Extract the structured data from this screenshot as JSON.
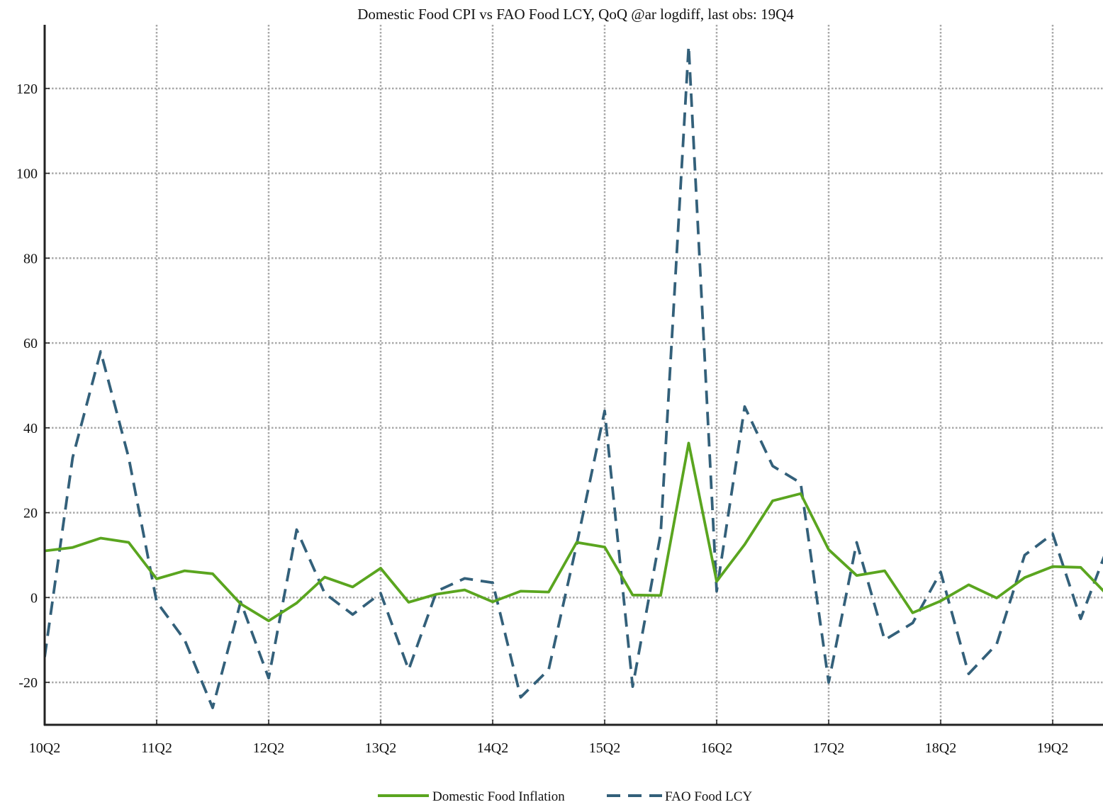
{
  "chart_data": {
    "type": "line",
    "title": "Domestic Food CPI vs FAO Food LCY, QoQ @ar logdiff, last obs: 19Q4",
    "xlabel": "",
    "ylabel": "",
    "x": [
      "10Q2",
      "10Q3",
      "10Q4",
      "11Q1",
      "11Q2",
      "11Q3",
      "11Q4",
      "12Q1",
      "12Q2",
      "12Q3",
      "12Q4",
      "13Q1",
      "13Q2",
      "13Q3",
      "13Q4",
      "14Q1",
      "14Q2",
      "14Q3",
      "14Q4",
      "15Q1",
      "15Q2",
      "15Q3",
      "15Q4",
      "16Q1",
      "16Q2",
      "16Q3",
      "16Q4",
      "17Q1",
      "17Q2",
      "17Q3",
      "17Q4",
      "18Q1",
      "18Q2",
      "18Q3",
      "18Q4",
      "19Q1",
      "19Q2",
      "19Q3",
      "19Q4"
    ],
    "x_tick_labels": [
      "10Q2",
      "11Q2",
      "12Q2",
      "13Q2",
      "14Q2",
      "15Q2",
      "16Q2",
      "17Q2",
      "18Q2",
      "19Q2"
    ],
    "y_ticks": [
      -20,
      0,
      20,
      40,
      60,
      80,
      100,
      120
    ],
    "ylim": [
      -30,
      135
    ],
    "grid": true,
    "legend_position": "bottom-center",
    "series": [
      {
        "name": "Domestic Food Inflation",
        "color": "#5aa51f",
        "style": "solid",
        "values": [
          11,
          11.8,
          14,
          13,
          4.4,
          6.3,
          5.6,
          -1.5,
          -5.5,
          -1.3,
          4.8,
          2.5,
          6.9,
          -1.1,
          0.8,
          1.8,
          -1,
          1.5,
          1.3,
          13,
          11.9,
          0.6,
          0.5,
          36.4,
          3.8,
          12.5,
          22.8,
          24.5,
          11.3,
          5.2,
          6.3,
          -3.6,
          -0.8,
          3,
          -0.1,
          4.7,
          7.3,
          7.1,
          0.3
        ]
      },
      {
        "name": "FAO Food LCY",
        "color": "#33607a",
        "style": "dashed",
        "values": [
          -14,
          33,
          58,
          33,
          -1,
          -10,
          -26,
          -1,
          -19,
          16,
          1,
          -4,
          1,
          -17,
          1.5,
          4.5,
          3.5,
          -23.5,
          -17,
          12.5,
          44,
          -21,
          15,
          130,
          1.5,
          45,
          31,
          27,
          -20,
          13,
          -10,
          -6,
          6,
          -18,
          -11,
          10,
          15,
          -5,
          12.5
        ]
      }
    ]
  }
}
